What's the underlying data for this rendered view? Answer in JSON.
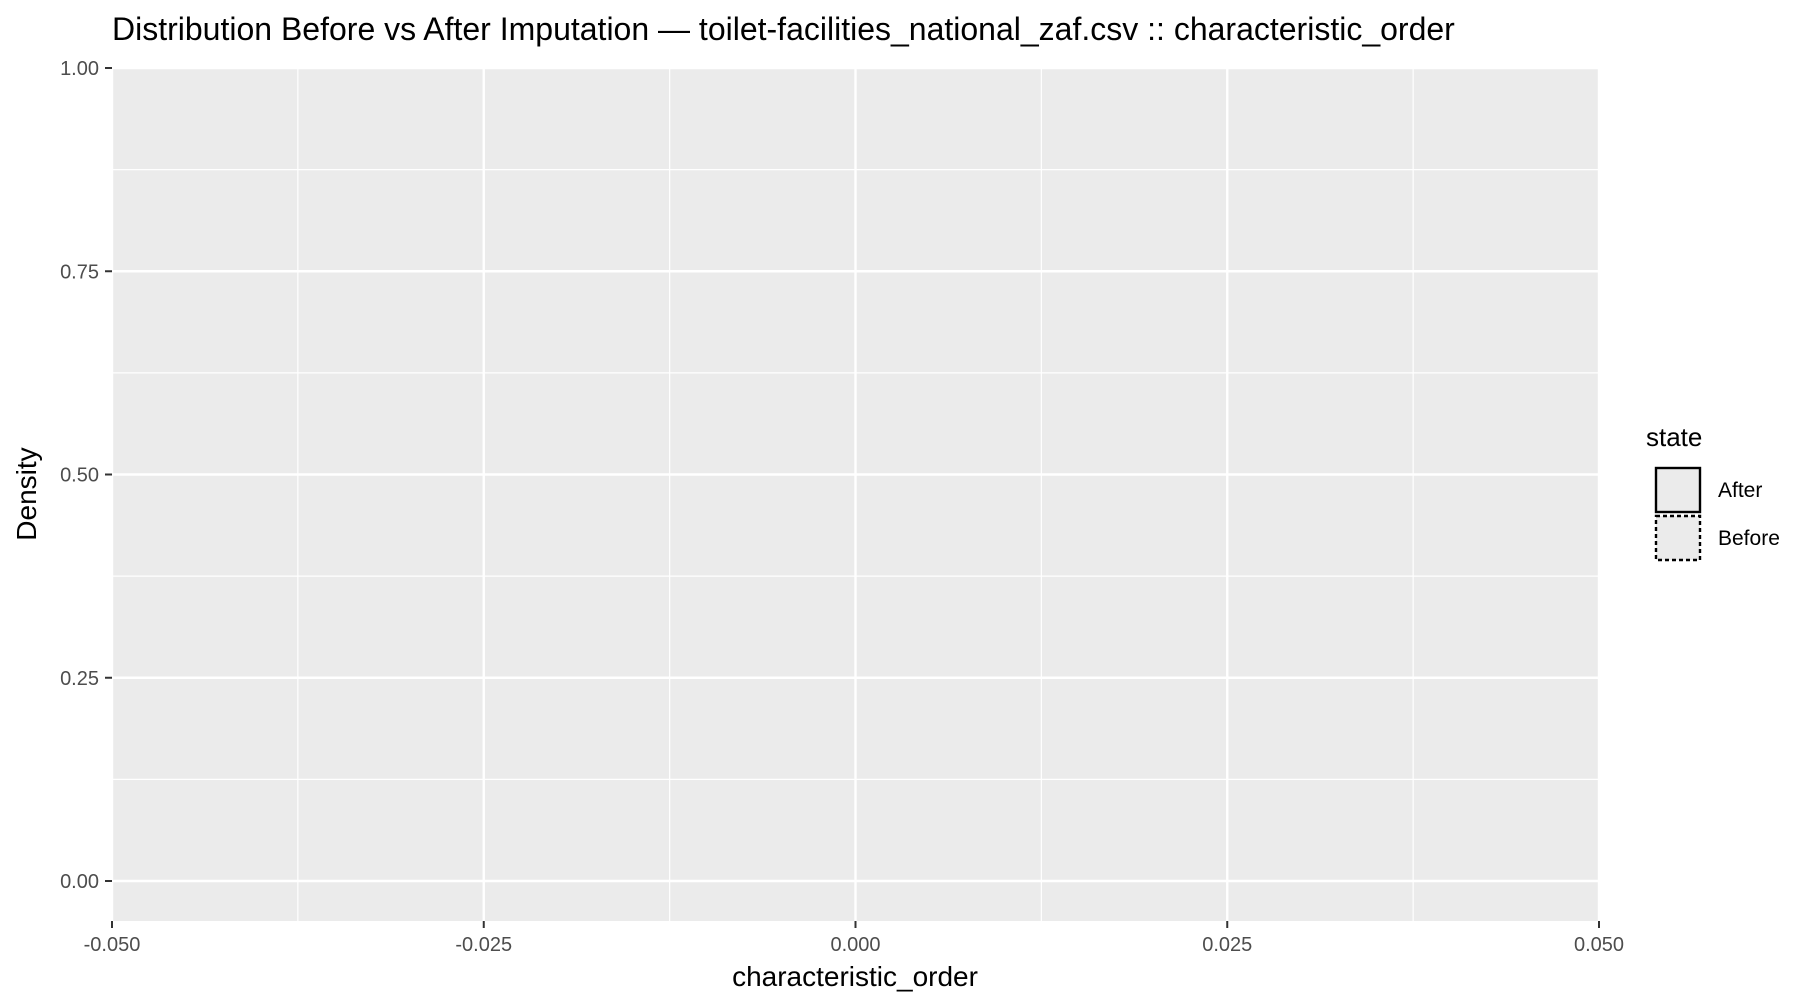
{
  "chart_data": {
    "type": "area",
    "title": "Distribution Before vs After Imputation — toilet-facilities_national_zaf.csv :: characteristic_order",
    "xlabel": "characteristic_order",
    "ylabel": "Density",
    "xlim": [
      -0.05,
      0.05
    ],
    "ylim": [
      0,
      1
    ],
    "x_ticks": [
      -0.05,
      -0.025,
      0.0,
      0.025,
      0.05
    ],
    "x_tick_labels": [
      "-0.050",
      "-0.025",
      "0.000",
      "0.025",
      "0.050"
    ],
    "y_ticks": [
      0.0,
      0.25,
      0.5,
      0.75,
      1.0
    ],
    "y_tick_labels": [
      "0.00",
      "0.25",
      "0.50",
      "0.75",
      "1.00"
    ],
    "grid": true,
    "legend": {
      "title": "state",
      "position": "right",
      "entries": [
        {
          "label": "After",
          "line": "solid"
        },
        {
          "label": "Before",
          "line": "dotted"
        }
      ]
    },
    "series": [
      {
        "name": "After",
        "x": [],
        "y": []
      },
      {
        "name": "Before",
        "x": [],
        "y": []
      }
    ],
    "colors": {
      "panel": "#ebebeb",
      "grid": "#ffffff",
      "tick_label": "#4d4d4d",
      "legend_fill": "#ebebeb",
      "legend_stroke": "#000000"
    }
  }
}
